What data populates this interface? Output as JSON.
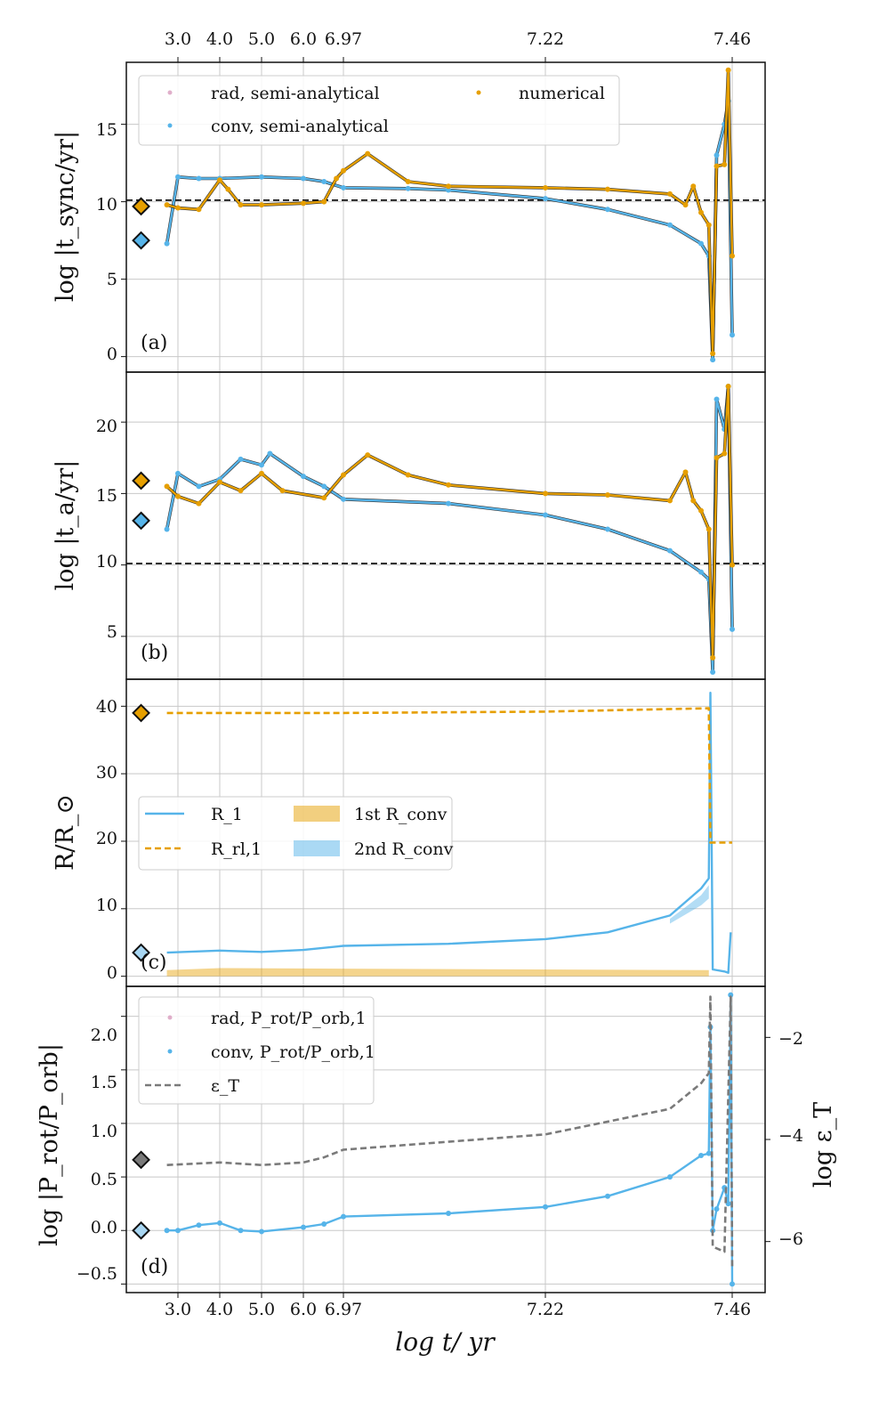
{
  "figure": {
    "xlabel": "log t/ yr",
    "tick_labels": [
      "3.0",
      "4.0",
      "5.0",
      "6.0",
      "6.97",
      "7.22",
      "7.46"
    ]
  },
  "chart_data": [
    {
      "panel": "a",
      "type": "scatter",
      "panel_label": "(a)",
      "ylabel": "log |t_sync/yr|",
      "ylim": [
        -1,
        19
      ],
      "yticks": [
        "0",
        "5",
        "10",
        "15"
      ],
      "hline": 10.1,
      "legend": [
        "rad, semi-analytical",
        "conv, semi-analytical",
        "numerical"
      ],
      "markers": [
        {
          "series": "numerical",
          "x": 2.5,
          "y": 9.7,
          "color": "#e69f00"
        },
        {
          "series": "conv",
          "x": 2.5,
          "y": 7.5,
          "color": "#56b4e9"
        }
      ],
      "series": [
        {
          "name": "conv, semi-analytical",
          "color": "#56b4e9",
          "points": [
            [
              2.85,
              7.3
            ],
            [
              3.0,
              11.6
            ],
            [
              3.5,
              11.5
            ],
            [
              4.0,
              11.5
            ],
            [
              5.0,
              11.6
            ],
            [
              6.0,
              11.5
            ],
            [
              6.5,
              11.3
            ],
            [
              6.97,
              10.9
            ],
            [
              7.05,
              10.85
            ],
            [
              7.1,
              10.75
            ],
            [
              7.22,
              10.2
            ],
            [
              7.3,
              9.5
            ],
            [
              7.38,
              8.5
            ],
            [
              7.42,
              7.3
            ],
            [
              7.43,
              6.5
            ],
            [
              7.435,
              -0.2
            ],
            [
              7.44,
              13
            ],
            [
              7.45,
              15.0
            ],
            [
              7.455,
              16.5
            ],
            [
              7.46,
              1.4
            ]
          ]
        },
        {
          "name": "numerical",
          "color": "#e69f00",
          "points": [
            [
              2.85,
              9.8
            ],
            [
              3.0,
              9.6
            ],
            [
              3.5,
              9.5
            ],
            [
              4.0,
              11.4
            ],
            [
              4.2,
              10.8
            ],
            [
              4.5,
              9.8
            ],
            [
              5.0,
              9.8
            ],
            [
              6.0,
              9.9
            ],
            [
              6.5,
              10.0
            ],
            [
              6.8,
              11.5
            ],
            [
              6.97,
              12.0
            ],
            [
              7.0,
              13.1
            ],
            [
              7.05,
              11.3
            ],
            [
              7.1,
              11.0
            ],
            [
              7.22,
              10.9
            ],
            [
              7.3,
              10.8
            ],
            [
              7.38,
              10.5
            ],
            [
              7.4,
              9.8
            ],
            [
              7.41,
              11.0
            ],
            [
              7.42,
              9.3
            ],
            [
              7.43,
              8.5
            ],
            [
              7.435,
              0.2
            ],
            [
              7.44,
              12.3
            ],
            [
              7.45,
              12.4
            ],
            [
              7.455,
              18.5
            ],
            [
              7.46,
              6.5
            ]
          ]
        }
      ]
    },
    {
      "panel": "b",
      "type": "scatter",
      "panel_label": "(b)",
      "ylabel": "log |t_a/yr|",
      "ylim": [
        2,
        23.5
      ],
      "yticks": [
        "5",
        "10",
        "15",
        "20"
      ],
      "hline": 10.1,
      "markers": [
        {
          "series": "numerical",
          "x": 2.5,
          "y": 15.9,
          "color": "#e69f00"
        },
        {
          "series": "conv",
          "x": 2.5,
          "y": 13.1,
          "color": "#56b4e9"
        }
      ],
      "series": [
        {
          "name": "conv, semi-analytical",
          "color": "#56b4e9",
          "points": [
            [
              2.85,
              12.5
            ],
            [
              3.0,
              16.4
            ],
            [
              3.5,
              15.5
            ],
            [
              4.0,
              16.0
            ],
            [
              4.5,
              17.4
            ],
            [
              5.0,
              17.0
            ],
            [
              5.2,
              17.8
            ],
            [
              6.0,
              16.2
            ],
            [
              6.5,
              15.5
            ],
            [
              6.97,
              14.6
            ],
            [
              7.1,
              14.3
            ],
            [
              7.22,
              13.5
            ],
            [
              7.3,
              12.5
            ],
            [
              7.38,
              11.0
            ],
            [
              7.42,
              9.5
            ],
            [
              7.43,
              9.0
            ],
            [
              7.435,
              2.5
            ],
            [
              7.44,
              21.6
            ],
            [
              7.45,
              19.5
            ],
            [
              7.455,
              22.5
            ],
            [
              7.46,
              5.5
            ]
          ]
        },
        {
          "name": "numerical",
          "color": "#e69f00",
          "points": [
            [
              2.85,
              15.5
            ],
            [
              3.0,
              14.8
            ],
            [
              3.5,
              14.3
            ],
            [
              4.0,
              15.8
            ],
            [
              4.5,
              15.2
            ],
            [
              5.0,
              16.4
            ],
            [
              5.5,
              15.2
            ],
            [
              6.5,
              14.7
            ],
            [
              6.97,
              16.3
            ],
            [
              7.0,
              17.7
            ],
            [
              7.05,
              16.3
            ],
            [
              7.1,
              15.6
            ],
            [
              7.22,
              15.0
            ],
            [
              7.3,
              14.9
            ],
            [
              7.38,
              14.5
            ],
            [
              7.4,
              16.5
            ],
            [
              7.41,
              14.5
            ],
            [
              7.42,
              13.8
            ],
            [
              7.43,
              12.5
            ],
            [
              7.435,
              3.5
            ],
            [
              7.44,
              17.5
            ],
            [
              7.45,
              17.8
            ],
            [
              7.455,
              22.5
            ],
            [
              7.46,
              10.0
            ]
          ]
        }
      ]
    },
    {
      "panel": "c",
      "type": "line",
      "panel_label": "(c)",
      "ylabel": "R/R_⊙",
      "ylim": [
        -1.5,
        44
      ],
      "yticks": [
        "0",
        "10",
        "20",
        "30",
        "40"
      ],
      "legend": [
        "R_1",
        "R_rl,1",
        "1st R_conv",
        "2nd R_conv"
      ],
      "markers": [
        {
          "series": "R_rl,1",
          "x": 2.5,
          "y": 39.0,
          "color": "#e69f00"
        },
        {
          "series": "R_1",
          "x": 2.5,
          "y": 3.5,
          "color": "#a8d6f2"
        }
      ],
      "series": [
        {
          "name": "R_1",
          "color": "#56b4e9",
          "points": [
            [
              2.85,
              3.5
            ],
            [
              4.0,
              3.8
            ],
            [
              5.0,
              3.6
            ],
            [
              6.0,
              3.9
            ],
            [
              6.97,
              4.5
            ],
            [
              7.1,
              4.8
            ],
            [
              7.22,
              5.5
            ],
            [
              7.3,
              6.5
            ],
            [
              7.38,
              9.0
            ],
            [
              7.42,
              13.0
            ],
            [
              7.43,
              14.5
            ],
            [
              7.432,
              42.0
            ],
            [
              7.435,
              1.0
            ],
            [
              7.45,
              0.7
            ],
            [
              7.455,
              0.5
            ],
            [
              7.458,
              6.5
            ]
          ]
        },
        {
          "name": "R_rl,1",
          "color": "#e69f00",
          "points": [
            [
              2.85,
              39.0
            ],
            [
              6.97,
              39.0
            ],
            [
              7.22,
              39.2
            ],
            [
              7.43,
              39.7
            ],
            [
              7.432,
              19.8
            ],
            [
              7.46,
              19.8
            ]
          ]
        }
      ]
    },
    {
      "panel": "d",
      "type": "line",
      "panel_label": "(d)",
      "ylabel": "log |P_rot/P_orb|",
      "ylabel_right": "log ε_T",
      "ylim": [
        -0.58,
        2.28
      ],
      "yticks": [
        "−0.5",
        "0.0",
        "0.5",
        "1.0",
        "1.5",
        "2.0"
      ],
      "y2lim": [
        -7.0,
        -1.0
      ],
      "y2ticks": [
        "−6",
        "−4",
        "−2"
      ],
      "legend": [
        "rad, P_rot/P_orb,1",
        "conv, P_rot/P_orb,1",
        "ε_T"
      ],
      "markers": [
        {
          "series": "eps",
          "x": 2.5,
          "y": 0.66,
          "color": "#7a7a7a"
        },
        {
          "series": "conv",
          "x": 2.5,
          "y": 0.0,
          "color": "#a8d6f2"
        }
      ],
      "series": [
        {
          "name": "conv, P_rot/P_orb,1",
          "color": "#56b4e9",
          "points": [
            [
              2.85,
              0.0
            ],
            [
              3.0,
              0.0
            ],
            [
              3.5,
              0.05
            ],
            [
              4.0,
              0.07
            ],
            [
              4.5,
              0.0
            ],
            [
              5.0,
              -0.01
            ],
            [
              6.0,
              0.03
            ],
            [
              6.5,
              0.06
            ],
            [
              6.97,
              0.13
            ],
            [
              7.1,
              0.16
            ],
            [
              7.22,
              0.22
            ],
            [
              7.3,
              0.32
            ],
            [
              7.38,
              0.5
            ],
            [
              7.42,
              0.7
            ],
            [
              7.43,
              0.72
            ],
            [
              7.432,
              1.9
            ],
            [
              7.435,
              0.0
            ],
            [
              7.44,
              0.2
            ],
            [
              7.45,
              0.4
            ],
            [
              7.455,
              0.25
            ],
            [
              7.458,
              2.2
            ],
            [
              7.46,
              -0.5
            ]
          ]
        },
        {
          "name": "ε_T",
          "color": "#7a7a7a",
          "points": [
            [
              2.85,
              -4.5
            ],
            [
              4.0,
              -4.45
            ],
            [
              5.0,
              -4.5
            ],
            [
              6.0,
              -4.45
            ],
            [
              6.5,
              -4.35
            ],
            [
              6.97,
              -4.2
            ],
            [
              7.22,
              -3.9
            ],
            [
              7.38,
              -3.4
            ],
            [
              7.42,
              -2.9
            ],
            [
              7.43,
              -2.7
            ],
            [
              7.432,
              -1.2
            ],
            [
              7.435,
              -6.1
            ],
            [
              7.45,
              -6.2
            ],
            [
              7.458,
              -1.2
            ],
            [
              7.46,
              -6.5
            ]
          ]
        }
      ]
    }
  ]
}
